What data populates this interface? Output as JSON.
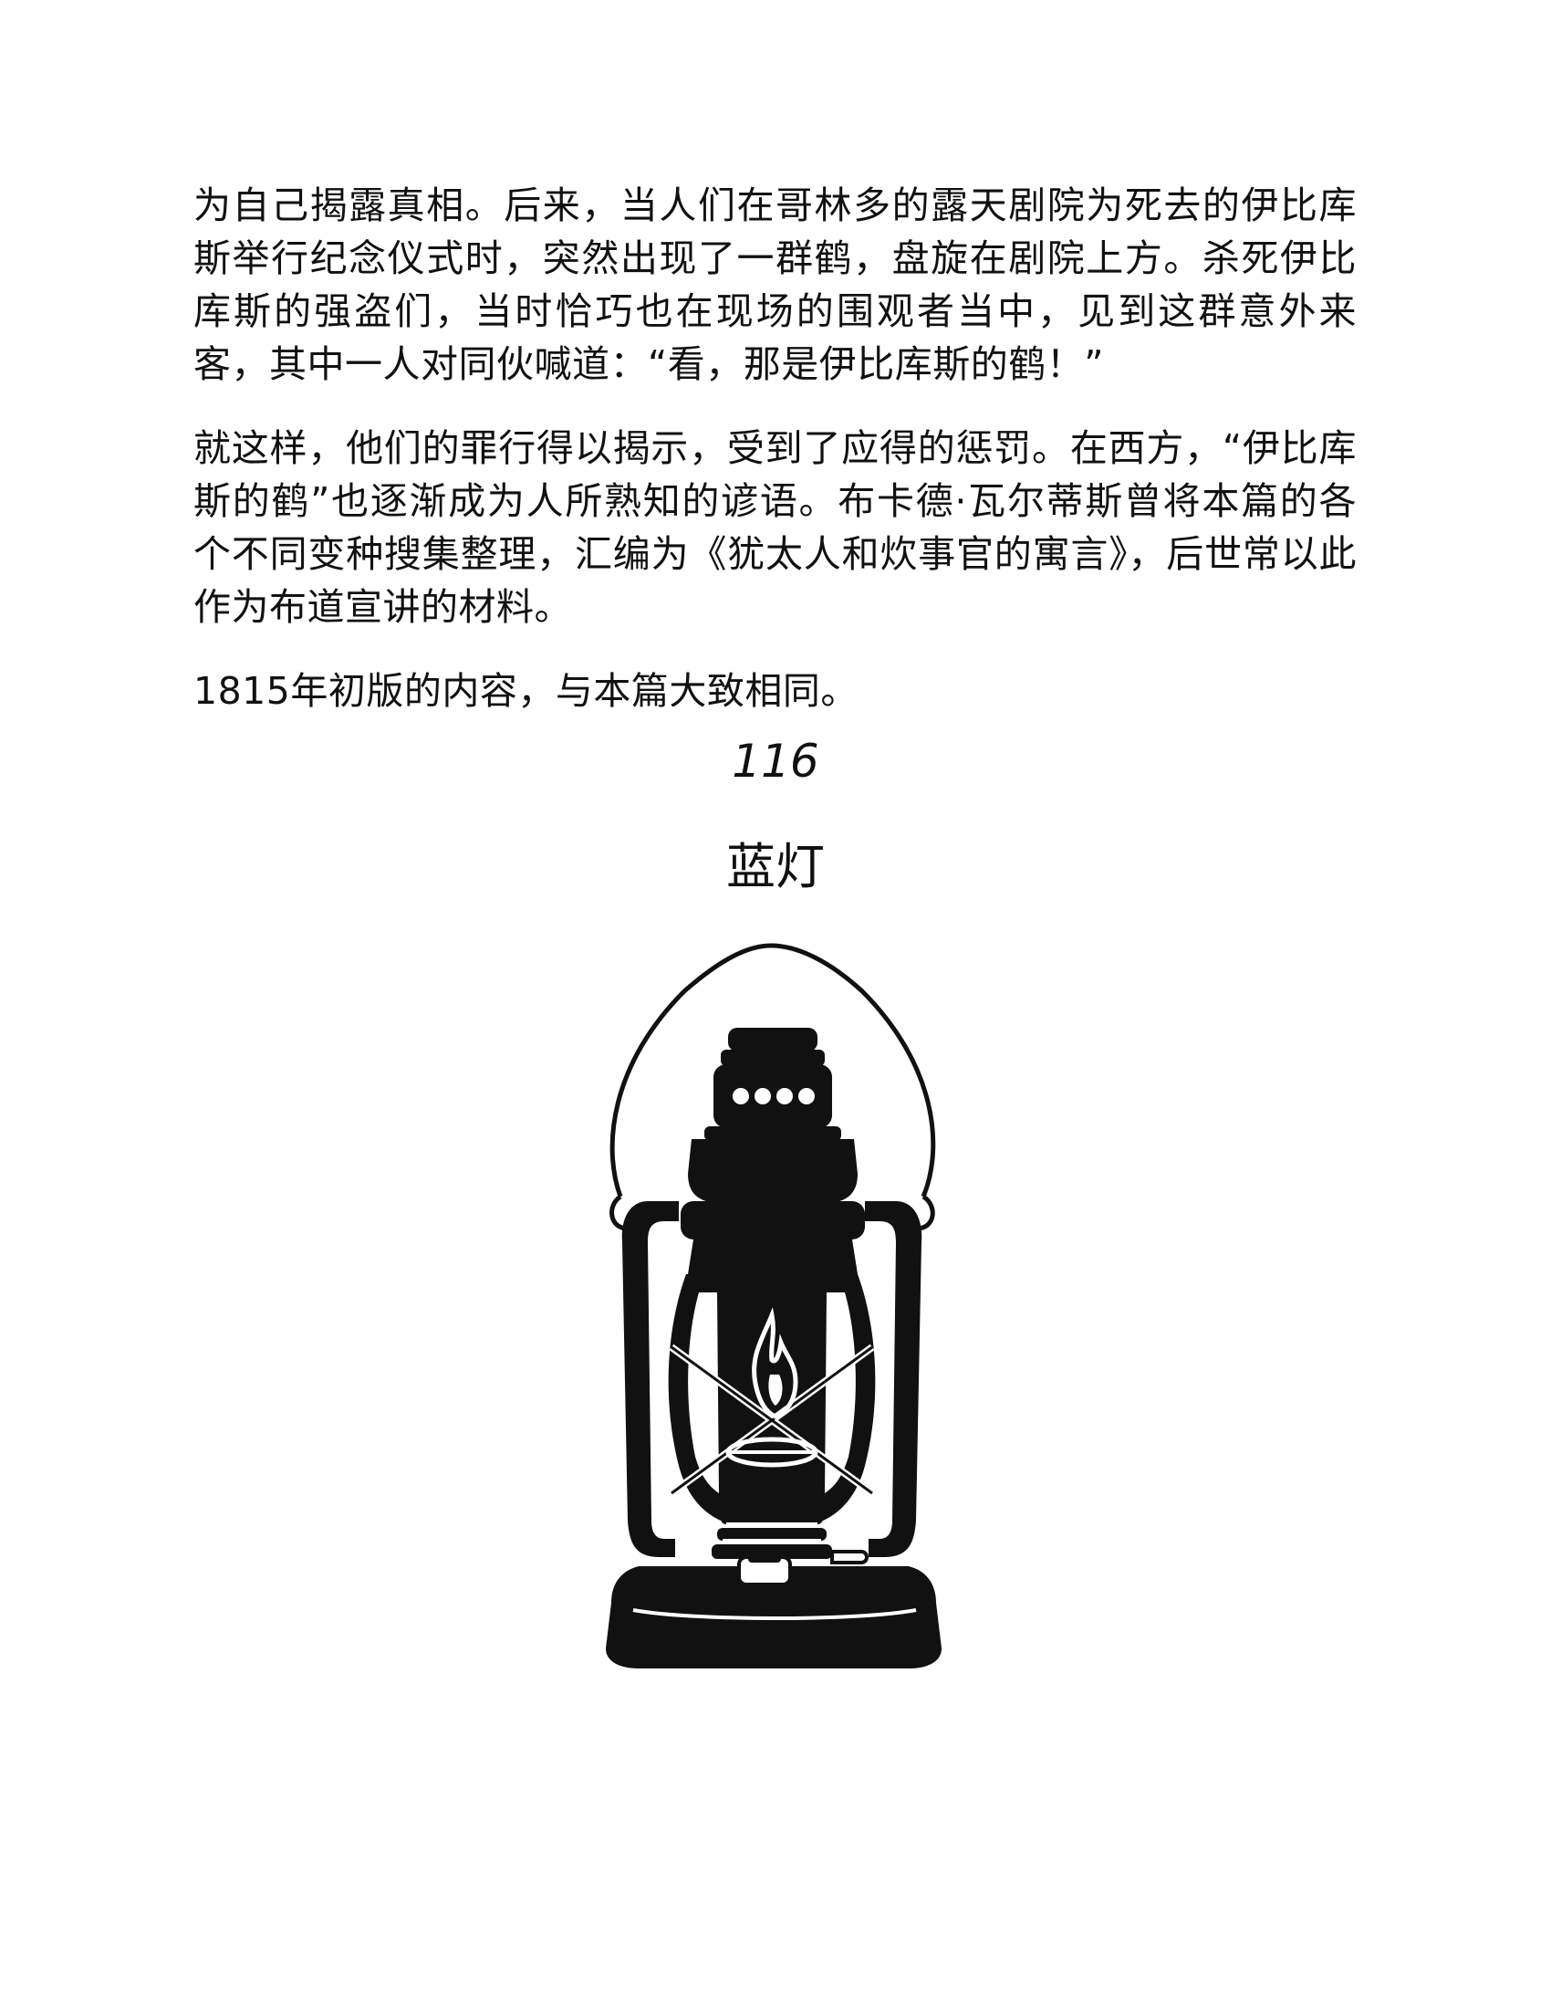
{
  "paragraphs": [
    "为自己揭露真相。后来，当人们在哥林多的露天剧院为死去的伊比库斯举行纪念仪式时，突然出现了一群鹤，盘旋在剧院上方。杀死伊比库斯的强盗们，当时恰巧也在现场的围观者当中，见到这群意外来客，其中一人对同伙喊道：“看，那是伊比库斯的鹤！”",
    "就这样，他们的罪行得以揭示，受到了应得的惩罚。在西方，“伊比库斯的鹤”也逐渐成为人所熟知的谚语。布卡德·瓦尔蒂斯曾将本篇的各个不同变种搜集整理，汇编为《犹太人和炊事官的寓言》，后世常以此作为布道宣讲的材料。",
    "1815年初版的内容，与本篇大致相同。"
  ],
  "chapter": {
    "number": "116",
    "title": "蓝灯"
  },
  "illustration": {
    "icon": "oil-lantern-icon",
    "ink_color": "#111111",
    "paper_color": "#ffffff"
  }
}
